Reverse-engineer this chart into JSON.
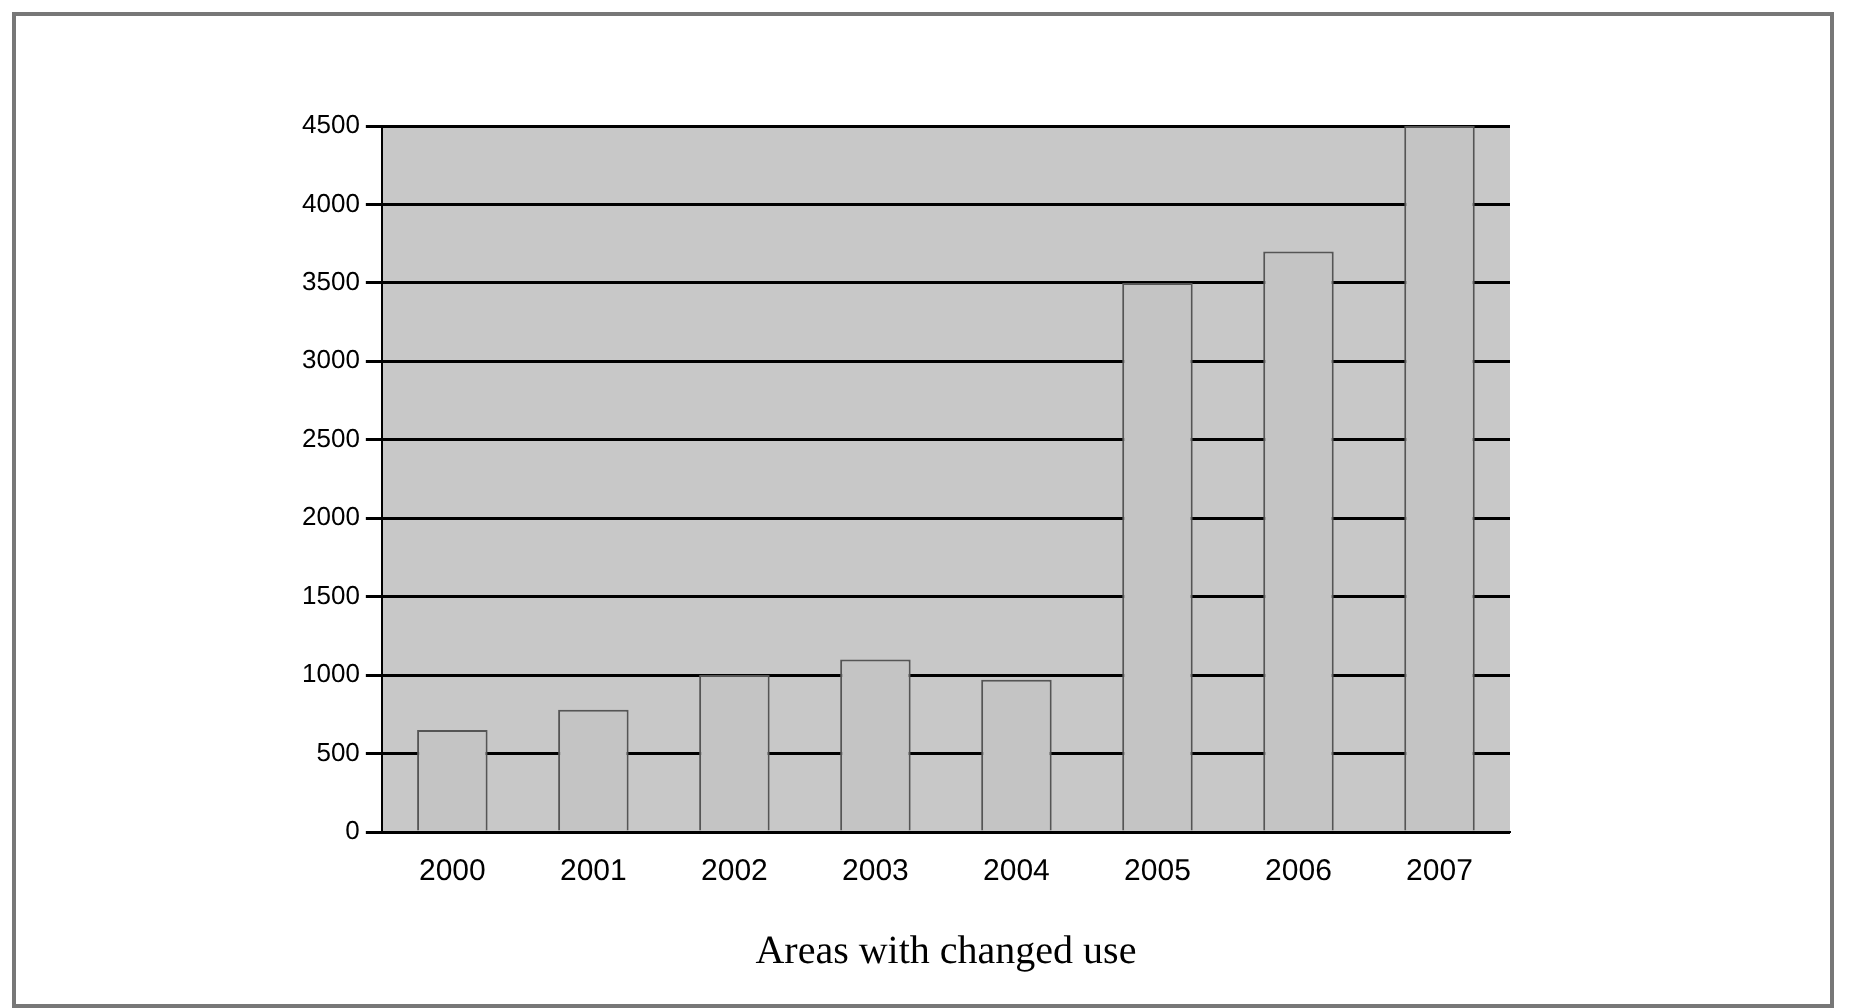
{
  "chart_data": {
    "type": "bar",
    "xlabel": "Areas with changed use",
    "categories": [
      "2000",
      "2001",
      "2002",
      "2003",
      "2004",
      "2005",
      "2006",
      "2007"
    ],
    "values": [
      650,
      780,
      1000,
      1100,
      970,
      3500,
      3700,
      4500
    ],
    "color": "#c4c4c4",
    "ylim": [
      0,
      4500
    ],
    "yticks": [
      0,
      500,
      1000,
      1500,
      2000,
      2500,
      3000,
      3500,
      4000,
      4500
    ],
    "grid": "y"
  }
}
